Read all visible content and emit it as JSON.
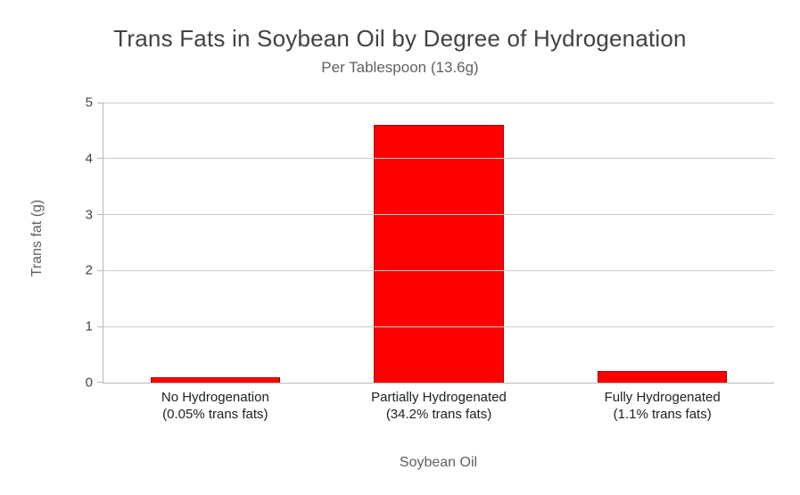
{
  "chart_data": {
    "type": "bar",
    "title": "Trans Fats in Soybean Oil by Degree of Hydrogenation",
    "subtitle": "Per Tablespoon (13.6g)",
    "xlabel": "Soybean Oil",
    "ylabel": "Trans fat (g)",
    "ylim": [
      0,
      5
    ],
    "yticks": [
      0,
      1,
      2,
      3,
      4,
      5
    ],
    "grid": true,
    "legend": "none",
    "bar_color": "#ff0000",
    "categories": [
      {
        "line1": "No Hydrogenation",
        "line2": "(0.05% trans fats)"
      },
      {
        "line1": "Partially Hydrogenated",
        "line2": "(34.2% trans fats)"
      },
      {
        "line1": "Fully Hydrogenated",
        "line2": "(1.1% trans fats)"
      }
    ],
    "values": [
      0.1,
      4.6,
      0.2
    ]
  }
}
